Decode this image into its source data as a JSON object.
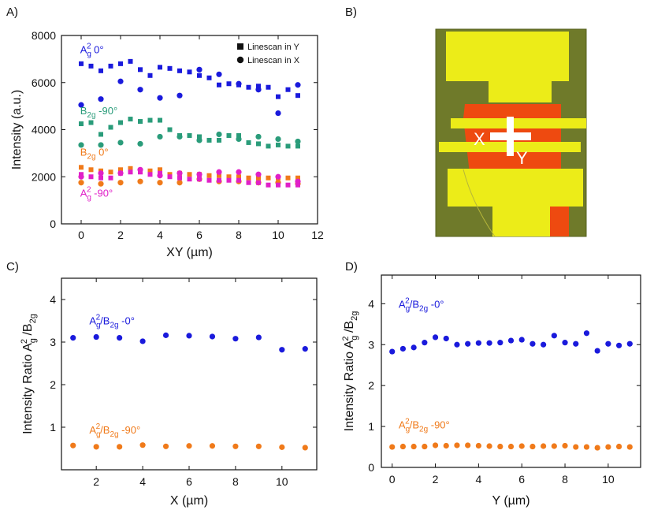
{
  "panel_labels": {
    "A": "A)",
    "B": "B)",
    "C": "C)",
    "D": "D)"
  },
  "colors": {
    "blue": "#1a1adc",
    "green": "#2a9c7a",
    "orange": "#f07a1a",
    "magenta": "#e020c8",
    "photo_bg": "#6f7a2a",
    "photo_yellow": "#ecec18",
    "photo_red": "#ee4a10"
  },
  "photo": {
    "x_label": "X",
    "y_label": "Y"
  },
  "chart_data": [
    {
      "id": "A",
      "type": "scatter",
      "title": "",
      "xlabel": "XY (µm)",
      "ylabel": "Intensity (a.u.)",
      "xlim": [
        -1,
        12
      ],
      "ylim": [
        0,
        8000
      ],
      "xticks": [
        0,
        2,
        4,
        6,
        8,
        10,
        12
      ],
      "yticks": [
        0,
        2000,
        4000,
        6000,
        8000
      ],
      "legend": {
        "position": "top-right",
        "entries": [
          {
            "marker": "square",
            "label": "Linescan in Y"
          },
          {
            "marker": "circle",
            "label": "Linescan in X"
          }
        ]
      },
      "series": [
        {
          "name": "Ag2 0° (Linescan in Y)",
          "color_key": "blue",
          "marker": "square",
          "x": [
            0,
            0.5,
            1,
            1.5,
            2,
            2.5,
            3,
            3.5,
            4,
            4.5,
            5,
            5.5,
            6,
            6.5,
            7,
            7.5,
            8,
            8.5,
            9,
            9.5,
            10,
            10.5,
            11
          ],
          "y": [
            6800,
            6700,
            6500,
            6700,
            6800,
            6900,
            6550,
            6300,
            6650,
            6600,
            6500,
            6450,
            6300,
            6200,
            5900,
            5950,
            5900,
            5800,
            5850,
            5800,
            5400,
            5700,
            5450
          ]
        },
        {
          "name": "Ag2 0° (Linescan in X)",
          "color_key": "blue",
          "marker": "circle",
          "x": [
            0,
            1,
            2,
            3,
            4,
            5,
            6,
            7,
            8,
            9,
            10,
            11
          ],
          "y": [
            5050,
            5300,
            6050,
            5700,
            5350,
            5450,
            6550,
            6350,
            5950,
            5700,
            4700,
            5900
          ]
        },
        {
          "name": "B2g -90° (Linescan in Y)",
          "color_key": "green",
          "marker": "square",
          "x": [
            0,
            0.5,
            1,
            1.5,
            2,
            2.5,
            3,
            3.5,
            4,
            4.5,
            5,
            5.5,
            6,
            6.5,
            7,
            7.5,
            8,
            8.5,
            9,
            9.5,
            10,
            10.5,
            11
          ],
          "y": [
            4250,
            4300,
            3800,
            4100,
            4300,
            4450,
            4350,
            4400,
            4400,
            4000,
            3750,
            3750,
            3700,
            3550,
            3550,
            3750,
            3750,
            3450,
            3400,
            3300,
            3350,
            3300,
            3300
          ]
        },
        {
          "name": "B2g -90° (Linescan in X)",
          "color_key": "green",
          "marker": "circle",
          "x": [
            0,
            1,
            2,
            3,
            4,
            5,
            6,
            7,
            8,
            9,
            10,
            11
          ],
          "y": [
            3350,
            3350,
            3450,
            3400,
            3700,
            3700,
            3550,
            3800,
            3600,
            3700,
            3600,
            3500
          ]
        },
        {
          "name": "B2g 0° (Linescan in Y)",
          "color_key": "orange",
          "marker": "square",
          "x": [
            0,
            0.5,
            1,
            1.5,
            2,
            2.5,
            3,
            3.5,
            4,
            4.5,
            5,
            5.5,
            6,
            6.5,
            7,
            7.5,
            8,
            8.5,
            9,
            9.5,
            10,
            10.5,
            11
          ],
          "y": [
            2400,
            2300,
            2250,
            2200,
            2300,
            2350,
            2250,
            2250,
            2300,
            2100,
            2150,
            2100,
            2100,
            2050,
            2050,
            2000,
            2000,
            1950,
            1950,
            1950,
            1950,
            1950,
            1950
          ]
        },
        {
          "name": "B2g 0° (Linescan in X)",
          "color_key": "orange",
          "marker": "circle",
          "x": [
            0,
            1,
            2,
            3,
            4,
            5,
            6,
            7,
            8,
            9,
            10,
            11
          ],
          "y": [
            1750,
            1700,
            1750,
            1800,
            1750,
            1750,
            1900,
            1800,
            1800,
            1750,
            1750,
            1700
          ]
        },
        {
          "name": "Ag2 -90° (Linescan in Y)",
          "color_key": "magenta",
          "marker": "square",
          "x": [
            0,
            0.5,
            1,
            1.5,
            2,
            2.5,
            3,
            3.5,
            4,
            4.5,
            5,
            5.5,
            6,
            6.5,
            7,
            7.5,
            8,
            8.5,
            9,
            9.5,
            10,
            10.5,
            11
          ],
          "y": [
            2100,
            2000,
            1950,
            1950,
            2150,
            2200,
            2200,
            2100,
            2150,
            2000,
            1950,
            1900,
            1900,
            1850,
            1850,
            1850,
            1850,
            1750,
            1750,
            1650,
            1650,
            1650,
            1650
          ]
        },
        {
          "name": "Ag2 -90° (Linescan in X)",
          "color_key": "magenta",
          "marker": "circle",
          "x": [
            0,
            1,
            2,
            3,
            4,
            5,
            6,
            7,
            8,
            9,
            10,
            11
          ],
          "y": [
            2000,
            2150,
            2150,
            2300,
            2050,
            2150,
            2100,
            2200,
            2200,
            2100,
            2000,
            1800
          ]
        }
      ],
      "annotations": [
        {
          "base": "A",
          "sub": "g",
          "sup": "2",
          "rest": " 0°",
          "color_key": "blue",
          "data_x": -0.05,
          "data_y": 7250
        },
        {
          "base": "B",
          "sub": "2g",
          "sup": "",
          "rest": " -90°",
          "color_key": "green",
          "data_x": -0.05,
          "data_y": 4650
        },
        {
          "base": "B",
          "sub": "2g",
          "sup": "",
          "rest": " 0°",
          "color_key": "orange",
          "data_x": -0.05,
          "data_y": 2900
        },
        {
          "base": "A",
          "sub": "g",
          "sup": "2",
          "rest": " -90°",
          "color_key": "magenta",
          "data_x": -0.05,
          "data_y": 1150
        }
      ]
    },
    {
      "id": "C",
      "type": "scatter",
      "title": "",
      "xlabel": "X (µm)",
      "ylabel": "Intensity Ratio Ag2/B2g",
      "xlim": [
        0.5,
        11.5
      ],
      "ylim": [
        0,
        4.5
      ],
      "xticks": [
        2,
        4,
        6,
        8,
        10
      ],
      "yticks": [
        1,
        2,
        3,
        4
      ],
      "series": [
        {
          "name": "Ag2/B2g -0°",
          "color_key": "blue",
          "marker": "circle",
          "x": [
            1,
            2,
            3,
            4,
            5,
            6,
            7,
            8,
            9,
            10,
            11
          ],
          "y": [
            3.1,
            3.12,
            3.1,
            3.02,
            3.16,
            3.15,
            3.13,
            3.08,
            3.11,
            2.82,
            2.84
          ]
        },
        {
          "name": "Ag2/B2g -90°",
          "color_key": "orange",
          "marker": "circle",
          "x": [
            1,
            2,
            3,
            4,
            5,
            6,
            7,
            8,
            9,
            10,
            11
          ],
          "y": [
            0.57,
            0.54,
            0.54,
            0.58,
            0.55,
            0.56,
            0.56,
            0.55,
            0.55,
            0.53,
            0.52
          ]
        }
      ],
      "annotations": [
        {
          "base": "A",
          "sub": "g",
          "sup": "2",
          "rest": "/B",
          "sub2": "2g",
          "rest2": " -0°",
          "color_key": "blue",
          "data_x": 1.7,
          "data_y": 3.42
        },
        {
          "base": "A",
          "sub": "g",
          "sup": "2",
          "rest": "/B",
          "sub2": "2g",
          "rest2": " -90°",
          "color_key": "orange",
          "data_x": 1.7,
          "data_y": 0.85
        }
      ]
    },
    {
      "id": "D",
      "type": "scatter",
      "title": "",
      "xlabel": "Y (µm)",
      "ylabel": "Intensity Ratio Ag2/B2g",
      "xlim": [
        -0.5,
        11.5
      ],
      "ylim": [
        0,
        4.7
      ],
      "xticks": [
        0,
        2,
        4,
        6,
        8,
        10
      ],
      "yticks": [
        0,
        1,
        2,
        3,
        4
      ],
      "series": [
        {
          "name": "Ag2/B2g -0°",
          "color_key": "blue",
          "marker": "circle",
          "x": [
            0,
            0.5,
            1,
            1.5,
            2,
            2.5,
            3,
            3.5,
            4,
            4.5,
            5,
            5.5,
            6,
            6.5,
            7,
            7.5,
            8,
            8.5,
            9,
            9.5,
            10,
            10.5,
            11
          ],
          "y": [
            2.83,
            2.9,
            2.93,
            3.05,
            3.18,
            3.15,
            3.0,
            3.02,
            3.04,
            3.04,
            3.05,
            3.1,
            3.12,
            3.02,
            3.0,
            3.22,
            3.05,
            3.02,
            3.28,
            2.85,
            3.02,
            2.98,
            3.02
          ]
        },
        {
          "name": "Ag2/B2g -90°",
          "color_key": "orange",
          "marker": "circle",
          "x": [
            0,
            0.5,
            1,
            1.5,
            2,
            2.5,
            3,
            3.5,
            4,
            4.5,
            5,
            5.5,
            6,
            6.5,
            7,
            7.5,
            8,
            8.5,
            9,
            9.5,
            10,
            10.5,
            11
          ],
          "y": [
            0.5,
            0.51,
            0.51,
            0.51,
            0.54,
            0.53,
            0.54,
            0.54,
            0.53,
            0.52,
            0.51,
            0.51,
            0.52,
            0.51,
            0.52,
            0.52,
            0.53,
            0.5,
            0.5,
            0.48,
            0.5,
            0.51,
            0.5
          ]
        }
      ],
      "annotations": [
        {
          "base": "A",
          "sub": "g",
          "sup": "2",
          "rest": "/B",
          "sub2": "2g",
          "rest2": " -0°",
          "color_key": "blue",
          "data_x": 0.3,
          "data_y": 3.9
        },
        {
          "base": "A",
          "sub": "g",
          "sup": "2",
          "rest": "/B",
          "sub2": "2g",
          "rest2": " -90°",
          "color_key": "orange",
          "data_x": 0.3,
          "data_y": 0.95
        }
      ]
    }
  ]
}
